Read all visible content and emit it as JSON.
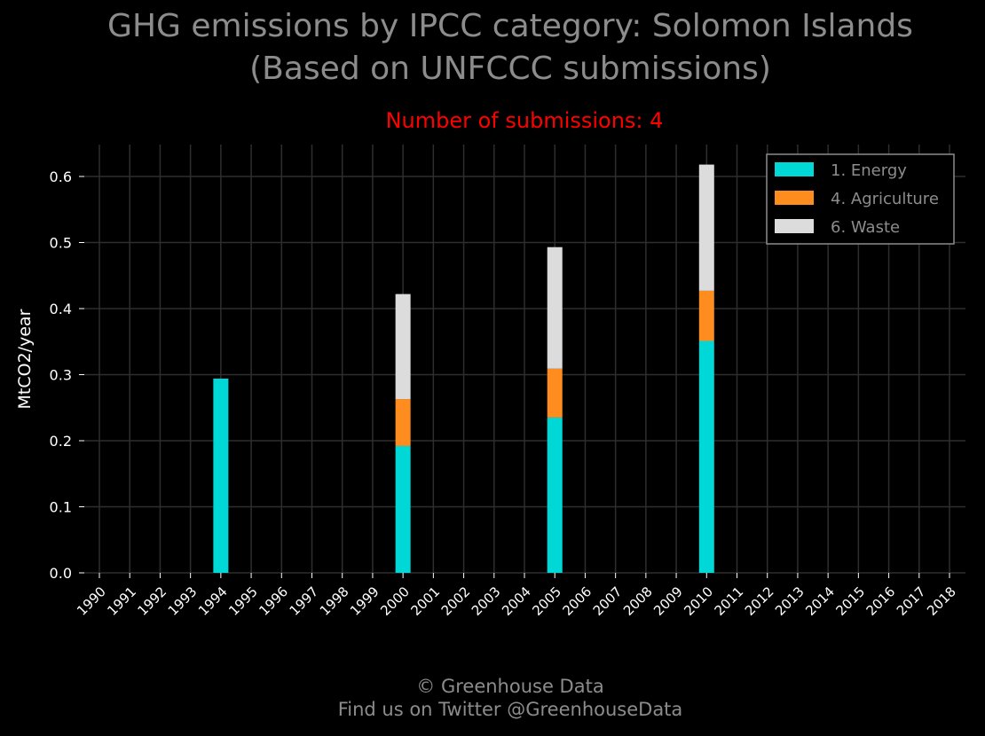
{
  "title_line1": "GHG emissions by IPCC category: Solomon Islands",
  "title_line2": "(Based on UNFCCC submissions)",
  "subtitle": "Number of submissions: 4",
  "footer_line1": "© Greenhouse Data",
  "footer_line2": "Find us on Twitter @GreenhouseData",
  "colors": {
    "background": "#000000",
    "title": "#8c8c8c",
    "subtitle": "#ff0000",
    "grid": "#2e2e2e",
    "tick_text": "#ffffff",
    "legend_border": "#8c8c8c"
  },
  "chart_data": {
    "type": "bar",
    "stacked": true,
    "ylabel": "MtCO2/year",
    "ylim": [
      0,
      0.65
    ],
    "yticks": [
      0.0,
      0.1,
      0.2,
      0.3,
      0.4,
      0.5,
      0.6
    ],
    "ytick_labels": [
      "0.0",
      "0.1",
      "0.2",
      "0.3",
      "0.4",
      "0.5",
      "0.6"
    ],
    "categories": [
      "1990",
      "1991",
      "1992",
      "1993",
      "1994",
      "1995",
      "1996",
      "1997",
      "1998",
      "1999",
      "2000",
      "2001",
      "2002",
      "2003",
      "2004",
      "2005",
      "2006",
      "2007",
      "2008",
      "2009",
      "2010",
      "2011",
      "2012",
      "2013",
      "2014",
      "2015",
      "2016",
      "2017",
      "2018"
    ],
    "grid": true,
    "legend_position": "top-right",
    "series": [
      {
        "name": "1. Energy",
        "color": "#00d8d8",
        "values": [
          0,
          0,
          0,
          0,
          0.294,
          0,
          0,
          0,
          0,
          0,
          0.192,
          0,
          0,
          0,
          0,
          0.235,
          0,
          0,
          0,
          0,
          0.351,
          0,
          0,
          0,
          0,
          0,
          0,
          0,
          0
        ]
      },
      {
        "name": "4. Agriculture",
        "color": "#ff8c1e",
        "values": [
          0,
          0,
          0,
          0,
          0,
          0,
          0,
          0,
          0,
          0,
          0.071,
          0,
          0,
          0,
          0,
          0.074,
          0,
          0,
          0,
          0,
          0.076,
          0,
          0,
          0,
          0,
          0,
          0,
          0,
          0
        ]
      },
      {
        "name": "6. Waste",
        "color": "#dcdcdc",
        "values": [
          0,
          0,
          0,
          0,
          0,
          0,
          0,
          0,
          0,
          0,
          0.159,
          0,
          0,
          0,
          0,
          0.184,
          0,
          0,
          0,
          0,
          0.191,
          0,
          0,
          0,
          0,
          0,
          0,
          0,
          0
        ]
      }
    ]
  }
}
